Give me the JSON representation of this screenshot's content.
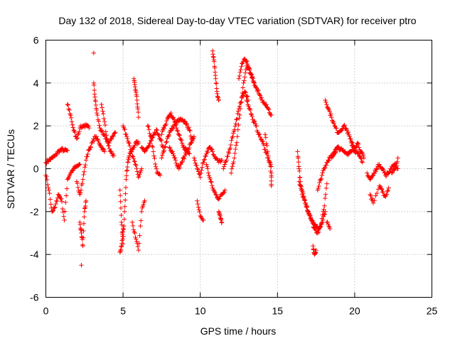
{
  "chart_data": {
    "type": "scatter",
    "title": "Day 132 of 2018, Sidereal Day-to-day VTEC variation (SDTVAR) for receiver ptro",
    "xlabel": "GPS time / hours",
    "ylabel": "SDTVAR / TECUs",
    "xlim": [
      0,
      25
    ],
    "ylim": [
      -6,
      6
    ],
    "xticks": [
      0,
      5,
      10,
      15,
      20,
      25
    ],
    "yticks": [
      -6,
      -4,
      -2,
      0,
      2,
      4,
      6
    ],
    "xtick_labels": [
      "0",
      "5",
      "10",
      "15",
      "20",
      "25"
    ],
    "ytick_labels": [
      "-6",
      "-4",
      "-2",
      "0",
      "2",
      "4",
      "6"
    ],
    "grid": true,
    "marker": "plus",
    "color": "#ff0000",
    "series": [
      {
        "name": "SDTVAR",
        "tracks": [
          {
            "x": [
              0.0,
              0.2,
              0.4,
              0.6,
              0.8,
              1.0,
              1.2,
              1.4
            ],
            "y": [
              0.3,
              0.4,
              0.5,
              0.6,
              0.8,
              0.9,
              0.85,
              0.85
            ]
          },
          {
            "x": [
              0.0,
              0.2,
              0.4,
              0.6,
              0.8,
              1.0,
              1.2,
              1.4,
              1.6,
              1.8,
              2.0,
              2.2
            ],
            "y": [
              -0.3,
              -1.0,
              -2.0,
              -1.8,
              -1.2,
              -1.4,
              -2.4,
              -0.5,
              -0.2,
              0.0,
              0.1,
              0.2
            ]
          },
          {
            "x": [
              1.4,
              1.6,
              1.8,
              2.0,
              2.2,
              2.4,
              2.6,
              2.8
            ],
            "y": [
              3.0,
              2.5,
              1.8,
              1.4,
              1.9,
              2.0,
              2.0,
              1.9
            ]
          },
          {
            "x": [
              2.0,
              2.2,
              2.4,
              2.6,
              2.8,
              3.0,
              3.2,
              3.4,
              3.6,
              3.8
            ],
            "y": [
              -0.6,
              -1.2,
              -0.5,
              0.4,
              0.9,
              1.2,
              1.5,
              1.3,
              1.0,
              0.8
            ]
          },
          {
            "x": [
              2.2,
              2.3,
              2.4,
              2.5,
              2.6
            ],
            "y": [
              -2.5,
              -3.0,
              -3.6,
              -2.0,
              -1.5
            ]
          },
          {
            "x": [
              2.3
            ],
            "y": [
              -4.5
            ]
          },
          {
            "x": [
              3.1
            ],
            "y": [
              5.4
            ]
          },
          {
            "x": [
              3.1,
              3.2,
              3.3,
              3.5,
              3.7,
              3.9,
              4.1,
              4.3,
              4.5
            ],
            "y": [
              4.0,
              3.2,
              2.6,
              1.9,
              1.6,
              1.4,
              1.2,
              1.5,
              1.7
            ]
          },
          {
            "x": [
              3.6,
              3.8,
              4.0,
              4.2,
              4.4
            ],
            "y": [
              3.0,
              2.2,
              1.2,
              0.8,
              0.6
            ]
          },
          {
            "x": [
              4.8,
              4.9,
              5.0,
              5.1,
              5.2,
              5.3,
              5.4,
              5.6,
              5.8,
              6.0
            ],
            "y": [
              -1.0,
              -2.5,
              -3.5,
              -2.0,
              -0.5,
              0.3,
              0.6,
              0.9,
              1.2,
              1.2
            ]
          },
          {
            "x": [
              4.8,
              4.9,
              5.0
            ],
            "y": [
              -3.9,
              -3.6,
              -2.8
            ]
          },
          {
            "x": [
              5.0,
              5.2,
              5.4,
              5.6,
              5.8,
              6.0,
              6.2
            ],
            "y": [
              2.0,
              1.6,
              1.2,
              0.6,
              0.2,
              -0.4,
              0.0
            ]
          },
          {
            "x": [
              5.7,
              5.8,
              5.9,
              6.0
            ],
            "y": [
              4.2,
              3.7,
              3.2,
              2.4
            ]
          },
          {
            "x": [
              5.6,
              5.8,
              6.0,
              6.2,
              6.4
            ],
            "y": [
              -2.5,
              -3.2,
              -3.8,
              -2.0,
              -1.5
            ]
          },
          {
            "x": [
              6.2,
              6.4,
              6.6,
              6.8,
              7.0,
              7.2,
              7.4,
              7.6
            ],
            "y": [
              1.0,
              0.8,
              1.0,
              1.3,
              1.6,
              1.8,
              1.4,
              1.0
            ]
          },
          {
            "x": [
              6.6,
              6.8,
              7.0,
              7.2,
              7.4
            ],
            "y": [
              2.0,
              1.5,
              0.6,
              -0.2,
              -0.3
            ]
          },
          {
            "x": [
              7.5,
              7.7,
              7.9,
              8.1,
              8.3,
              8.5,
              8.7,
              8.9,
              9.1,
              9.3,
              9.5
            ],
            "y": [
              0.5,
              1.0,
              1.5,
              1.8,
              2.0,
              2.2,
              2.3,
              2.2,
              2.1,
              1.8,
              1.3
            ]
          },
          {
            "x": [
              7.5,
              7.7,
              7.9,
              8.1,
              8.3,
              8.5,
              8.7,
              8.9,
              9.1,
              9.3
            ],
            "y": [
              1.6,
              2.0,
              2.4,
              2.6,
              2.3,
              1.8,
              1.4,
              1.0,
              0.9,
              0.7
            ]
          },
          {
            "x": [
              8.0,
              8.2,
              8.4,
              8.6,
              8.8,
              9.0,
              9.2,
              9.4,
              9.6
            ],
            "y": [
              1.0,
              0.8,
              0.4,
              0.0,
              0.3,
              0.6,
              0.9,
              1.2,
              1.5
            ]
          },
          {
            "x": [
              9.6,
              9.8,
              10.0,
              10.2,
              10.4,
              10.6,
              10.8,
              11.0,
              11.2,
              11.4
            ],
            "y": [
              0.5,
              0.0,
              -0.4,
              0.3,
              0.7,
              1.0,
              0.8,
              0.5,
              0.3,
              0.4
            ]
          },
          {
            "x": [
              9.8,
              10.0,
              10.2
            ],
            "y": [
              -1.5,
              -2.2,
              -2.4
            ]
          },
          {
            "x": [
              10.4,
              10.6,
              10.8,
              11.0,
              11.2,
              11.4,
              11.6
            ],
            "y": [
              0.2,
              -0.4,
              -0.9,
              -1.2,
              -1.4,
              -1.2,
              -1.0
            ]
          },
          {
            "x": [
              10.8,
              10.9,
              11.0,
              11.1,
              11.2
            ],
            "y": [
              5.5,
              5.0,
              4.2,
              3.5,
              3.2
            ]
          },
          {
            "x": [
              11.2,
              11.3,
              11.4
            ],
            "y": [
              -2.0,
              -2.3,
              -2.5
            ]
          },
          {
            "x": [
              11.5,
              11.7,
              11.9,
              12.1,
              12.3,
              12.5,
              12.7,
              12.9,
              13.1
            ],
            "y": [
              0.0,
              0.4,
              0.9,
              1.5,
              2.1,
              2.8,
              3.3,
              3.6,
              3.2
            ]
          },
          {
            "x": [
              12.0,
              12.2,
              12.4,
              12.6,
              12.8,
              13.0,
              13.2,
              13.4,
              13.6
            ],
            "y": [
              -0.2,
              0.5,
              1.5,
              2.8,
              4.0,
              4.8,
              4.6,
              4.2,
              3.8
            ]
          },
          {
            "x": [
              12.5,
              12.7,
              12.9,
              13.1,
              13.3,
              13.5
            ],
            "y": [
              4.2,
              4.9,
              5.1,
              4.8,
              4.4,
              4.0
            ]
          },
          {
            "x": [
              13.0,
              13.2,
              13.4,
              13.6,
              13.8,
              14.0,
              14.2,
              14.4,
              14.6
            ],
            "y": [
              3.2,
              2.8,
              2.3,
              2.0,
              1.6,
              1.3,
              0.9,
              0.5,
              0.1
            ]
          },
          {
            "x": [
              13.6,
              13.8,
              14.0,
              14.2,
              14.4,
              14.6
            ],
            "y": [
              3.8,
              3.5,
              3.2,
              3.0,
              2.8,
              2.5
            ]
          },
          {
            "x": [
              14.2,
              14.4,
              14.6,
              14.6
            ],
            "y": [
              1.6,
              0.6,
              -0.2,
              -0.8
            ]
          },
          {
            "x": [
              16.3,
              16.4,
              16.5,
              16.7,
              16.9,
              17.1,
              17.3,
              17.5,
              17.7,
              17.9,
              18.1
            ],
            "y": [
              0.8,
              0.0,
              -0.8,
              -1.3,
              -1.8,
              -2.2,
              -2.5,
              -2.7,
              -2.8,
              -2.5,
              -2.0
            ]
          },
          {
            "x": [
              16.4,
              16.6,
              16.8,
              17.0,
              17.2,
              17.4,
              17.6,
              17.8,
              18.0,
              18.2
            ],
            "y": [
              -0.6,
              -1.2,
              -1.6,
              -2.0,
              -2.4,
              -2.8,
              -3.0,
              -2.7,
              -1.9,
              -0.7
            ]
          },
          {
            "x": [
              17.3,
              17.4,
              17.5
            ],
            "y": [
              -3.6,
              -4.0,
              -3.8
            ]
          },
          {
            "x": [
              17.6,
              17.8,
              18.0,
              18.2,
              18.4,
              18.6,
              18.8
            ],
            "y": [
              -1.0,
              -0.5,
              0.0,
              0.3,
              0.5,
              0.7,
              0.8
            ]
          },
          {
            "x": [
              18.1,
              18.3,
              18.5,
              18.7,
              18.9,
              19.1,
              19.3,
              19.5,
              19.7,
              19.9
            ],
            "y": [
              3.2,
              2.8,
              2.4,
              2.0,
              1.7,
              1.8,
              2.0,
              1.8,
              1.4,
              1.0
            ]
          },
          {
            "x": [
              18.5,
              18.7,
              18.9,
              19.1,
              19.3,
              19.5,
              19.7,
              19.9,
              20.1,
              20.3,
              20.5
            ],
            "y": [
              0.5,
              0.8,
              1.0,
              0.9,
              0.8,
              0.7,
              0.8,
              0.9,
              0.8,
              0.6,
              0.3
            ]
          },
          {
            "x": [
              19.8,
              20.0,
              20.2,
              20.4,
              20.6
            ],
            "y": [
              1.2,
              1.0,
              1.2,
              0.8,
              0.5
            ]
          },
          {
            "x": [
              18.2,
              18.4
            ],
            "y": [
              -2.5,
              -2.8
            ]
          },
          {
            "x": [
              20.8,
              21.0,
              21.2,
              21.4,
              21.6,
              21.8,
              22.0,
              22.2,
              22.4,
              22.6,
              22.8
            ],
            "y": [
              -0.2,
              -0.5,
              -0.3,
              0.0,
              0.2,
              0.0,
              -0.3,
              -0.2,
              0.1,
              0.2,
              0.0
            ]
          },
          {
            "x": [
              21.0,
              21.2,
              21.6,
              21.8,
              22.0,
              22.2
            ],
            "y": [
              -1.2,
              -1.6,
              -0.8,
              -1.1,
              -1.3,
              -0.9
            ]
          },
          {
            "x": [
              22.4,
              22.6,
              22.8
            ],
            "y": [
              -0.2,
              0.0,
              0.5
            ]
          }
        ]
      }
    ]
  }
}
